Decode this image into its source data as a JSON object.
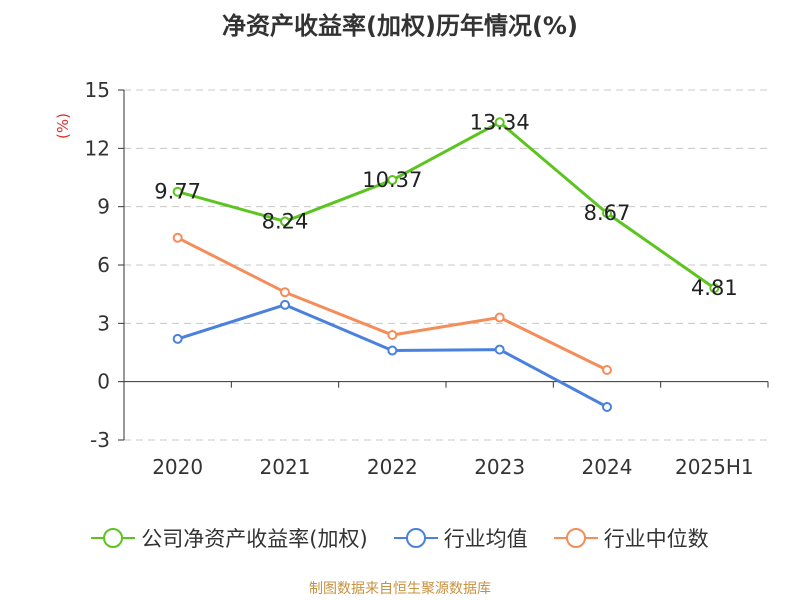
{
  "chart_data": {
    "type": "line",
    "title": "净资产收益率(加权)历年情况(%)",
    "ylabel": "(%)",
    "categories": [
      "2020",
      "2021",
      "2022",
      "2023",
      "2024",
      "2025H1"
    ],
    "ylim": [
      -3,
      15
    ],
    "yticks": [
      -3,
      0,
      3,
      6,
      9,
      12,
      15
    ],
    "grid": true,
    "legend_position": "bottom",
    "series": [
      {
        "name": "公司净资产收益率(加权)",
        "color": "#5cc41f",
        "values": [
          9.77,
          8.24,
          10.37,
          13.34,
          8.67,
          4.81
        ],
        "data_labels": [
          "9.77",
          "8.24",
          "10.37",
          "13.34",
          "8.67",
          "4.81"
        ]
      },
      {
        "name": "行业均值",
        "color": "#4a80de",
        "values": [
          2.2,
          3.95,
          1.6,
          1.65,
          -1.3,
          null
        ]
      },
      {
        "name": "行业中位数",
        "color": "#f48d5a",
        "values": [
          7.4,
          4.6,
          2.4,
          3.3,
          0.6,
          null
        ]
      }
    ]
  },
  "source": "制图数据来自恒生聚源数据库"
}
